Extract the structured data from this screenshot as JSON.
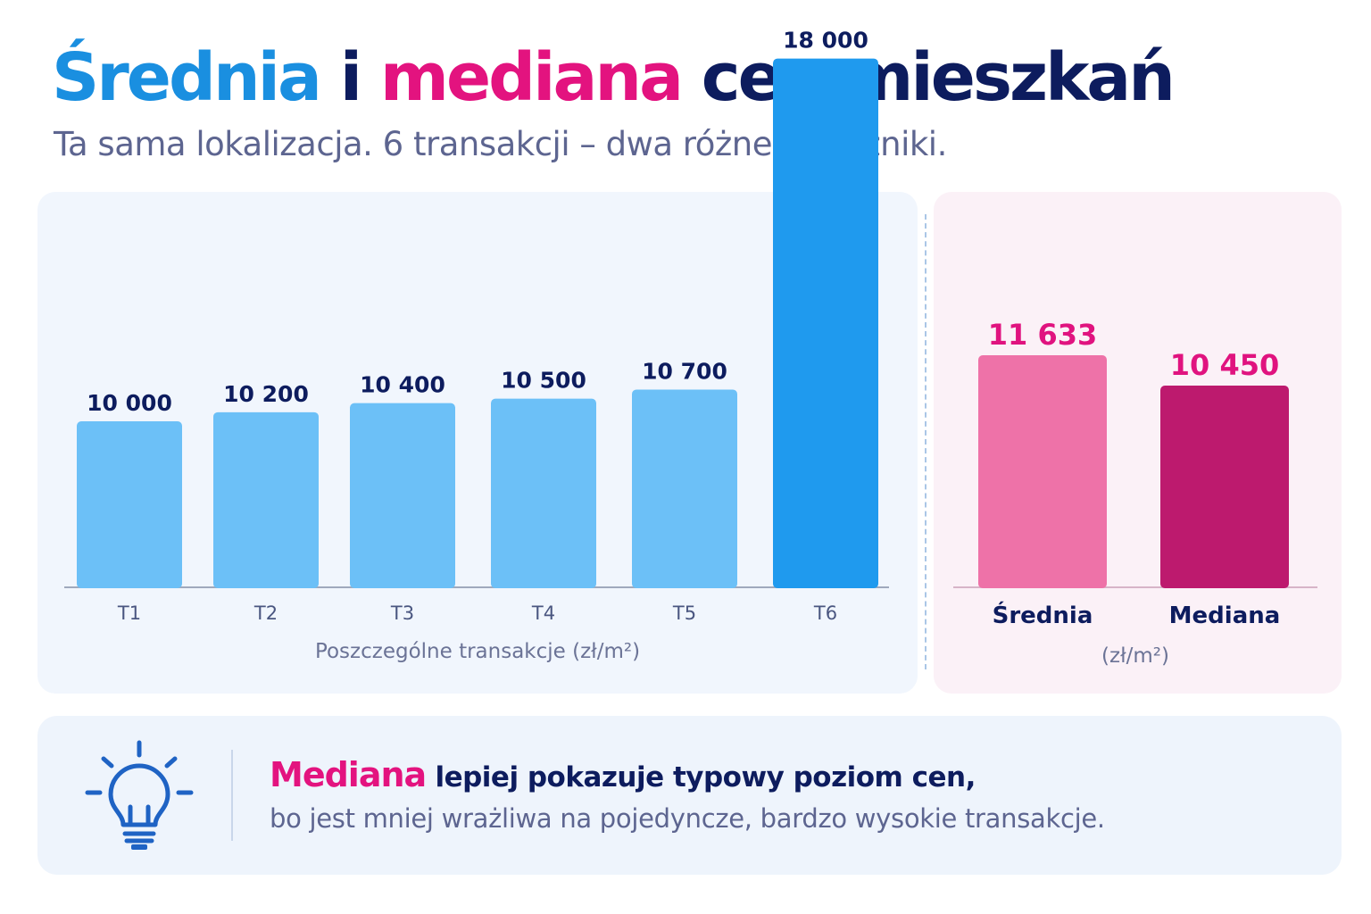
{
  "title": {
    "part1": "Średnia",
    "part2": "i",
    "part3": "mediana",
    "part4": "cen mieszkań"
  },
  "subtitle": "Ta sama lokalizacja. 6 transakcji – dwa różne wskaźniki.",
  "chart_data": [
    {
      "type": "bar",
      "categories": [
        "T1",
        "T2",
        "T3",
        "T4",
        "T5",
        "T6"
      ],
      "values": [
        10000,
        10200,
        10400,
        10500,
        10700,
        18000
      ],
      "value_labels": [
        "10 000",
        "10 200",
        "10 400",
        "10 500",
        "10 700",
        "18 000"
      ],
      "xlabel": "Poszczególne transakcje (zł/m²)",
      "ylabel": "",
      "ylim": [
        0,
        19000
      ],
      "grid": false,
      "colors": [
        "#6cc0f7",
        "#6cc0f7",
        "#6cc0f7",
        "#6cc0f7",
        "#6cc0f7",
        "#1f9aee"
      ]
    },
    {
      "type": "bar",
      "categories": [
        "Średnia",
        "Mediana"
      ],
      "values": [
        11633,
        10450
      ],
      "value_labels": [
        "11 633",
        "10 450"
      ],
      "xlabel": "(zł/m²)",
      "ylabel": "",
      "ylim": [
        0,
        19000
      ],
      "grid": false,
      "colors": [
        "#ee72a8",
        "#bd1a6e"
      ]
    }
  ],
  "colors": {
    "accent_blue": "#1a8fe0",
    "accent_pink": "#e3137f",
    "navy": "#0d1c5e",
    "value_pink": "#e0137f"
  },
  "tip": {
    "icon": "lightbulb-icon",
    "highlight": "Mediana",
    "line1_rest": " lepiej pokazuje typowy poziom cen,",
    "line2": "bo jest mniej wrażliwa na pojedyncze, bardzo wysokie transakcje."
  }
}
